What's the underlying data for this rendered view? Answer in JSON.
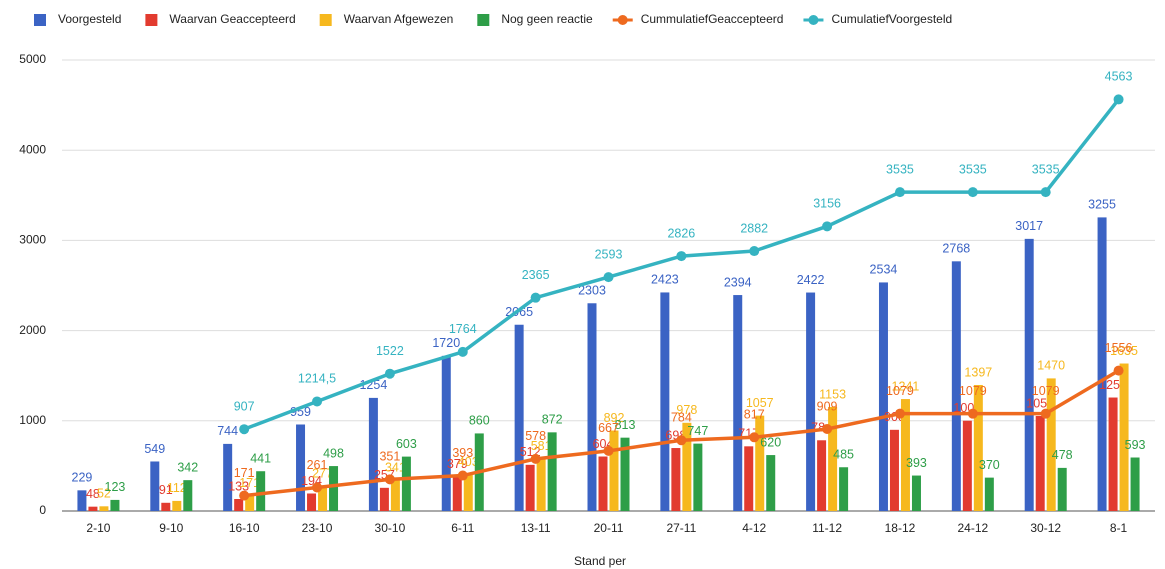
{
  "chart_data": {
    "type": "bar",
    "x_label": "Stand per",
    "categories": [
      "2-10",
      "9-10",
      "16-10",
      "23-10",
      "30-10",
      "6-11",
      "13-11",
      "20-11",
      "27-11",
      "4-12",
      "11-12",
      "18-12",
      "24-12",
      "30-12",
      "8-1"
    ],
    "series": [
      {
        "name": "Voorgesteld",
        "color": "#3b63c4",
        "values": [
          229,
          549,
          744,
          959,
          1254,
          1720,
          2065,
          2303,
          2423,
          2394,
          2422,
          2534,
          2768,
          3017,
          3255
        ]
      },
      {
        "name": "Waarvan Geaccepteerd",
        "color": "#e23b2f",
        "values": [
          48,
          91,
          133,
          194,
          257,
          379,
          512,
          604,
          698,
          717,
          784,
          900,
          1001,
          1053,
          1258
        ]
      },
      {
        "name": "Waarvan Afgewezen",
        "color": "#f6b81e",
        "values": [
          52,
          112,
          171,
          277,
          341,
          403,
          581,
          892,
          978,
          1057,
          1153,
          1241,
          1397,
          1470,
          1635
        ]
      },
      {
        "name": "Nog geen reactie",
        "color": "#2e9e48",
        "values": [
          123,
          342,
          441,
          498,
          603,
          860,
          872,
          813,
          747,
          620,
          485,
          393,
          370,
          478,
          593
        ]
      },
      {
        "name": "CummulatiefGeaccepteerd",
        "type": "line",
        "color": "#ee6a1f",
        "values": [
          null,
          null,
          171,
          261,
          351,
          393,
          578,
          667,
          784,
          817,
          909,
          1079,
          1079,
          1079,
          1556
        ]
      },
      {
        "name": "CumulatiefVoorgesteld",
        "type": "line",
        "color": "#35b3c1",
        "values": [
          null,
          null,
          907,
          1214.5,
          1522,
          1764,
          2365,
          2593,
          2826,
          2882,
          3156,
          3535,
          3535,
          3535,
          4563
        ],
        "value_labels": [
          null,
          null,
          "907",
          "1214,5",
          "1522",
          "1764",
          "2365",
          "2593",
          "2826",
          "2882",
          "3156",
          "3535",
          "3535",
          "3535",
          "4563"
        ]
      }
    ],
    "ylim": [
      0,
      5000
    ],
    "yticks": [
      0,
      1000,
      2000,
      3000,
      4000,
      5000
    ],
    "grid": true,
    "legend": "top"
  }
}
